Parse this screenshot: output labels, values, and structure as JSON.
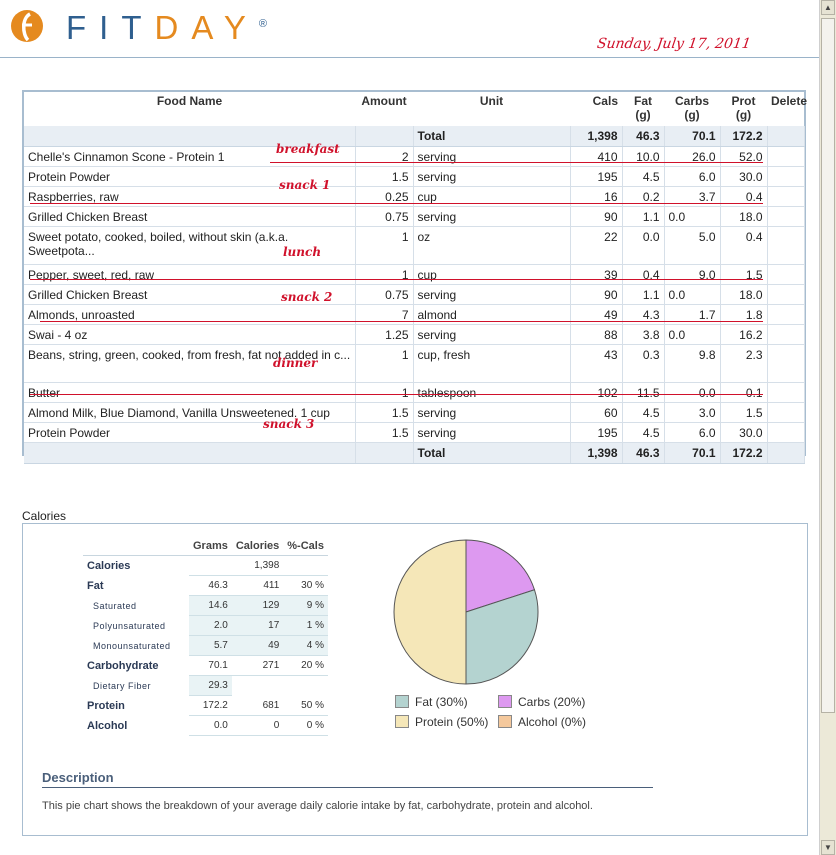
{
  "brand": {
    "name_a": "FIT",
    "name_b": "DAY",
    "mark": "®"
  },
  "date_note": "Sunday, July 17, 2011",
  "food_table": {
    "headers": {
      "food": "Food Name",
      "amount": "Amount",
      "unit": "Unit",
      "cals": "Cals",
      "fat": "Fat (g)",
      "carbs": "Carbs (g)",
      "prot": "Prot (g)",
      "delete": "Delete"
    },
    "total_label": "Total",
    "totals": {
      "cals": "1,398",
      "fat": "46.3",
      "carbs": "70.1",
      "prot": "172.2"
    },
    "rows": [
      {
        "name": "Chelle's Cinnamon Scone - Protein 1",
        "amount": "2",
        "unit": "serving",
        "cals": "410",
        "fat": "10.0",
        "carbs": "26.0",
        "prot": "52.0"
      },
      {
        "name": "Protein Powder",
        "amount": "1.5",
        "unit": "serving",
        "cals": "195",
        "fat": "4.5",
        "carbs": "6.0",
        "prot": "30.0"
      },
      {
        "name": "Raspberries, raw",
        "amount": "0.25",
        "unit": "cup",
        "cals": "16",
        "fat": "0.2",
        "carbs": "3.7",
        "prot": "0.4"
      },
      {
        "name": "Grilled Chicken Breast",
        "amount": "0.75",
        "unit": "serving",
        "cals": "90",
        "fat": "1.1",
        "carbs": "0.0",
        "prot": "18.0"
      },
      {
        "name": "Sweet potato, cooked, boiled, without skin (a.k.a. Sweetpota...",
        "amount": "1",
        "unit": "oz",
        "cals": "22",
        "fat": "0.0",
        "carbs": "5.0",
        "prot": "0.4"
      },
      {
        "name": "Pepper, sweet, red, raw",
        "amount": "1",
        "unit": "cup",
        "cals": "39",
        "fat": "0.4",
        "carbs": "9.0",
        "prot": "1.5"
      },
      {
        "name": "Grilled Chicken Breast",
        "amount": "0.75",
        "unit": "serving",
        "cals": "90",
        "fat": "1.1",
        "carbs": "0.0",
        "prot": "18.0"
      },
      {
        "name": "Almonds, unroasted",
        "amount": "7",
        "unit": "almond",
        "cals": "49",
        "fat": "4.3",
        "carbs": "1.7",
        "prot": "1.8"
      },
      {
        "name": "Swai - 4 oz",
        "amount": "1.25",
        "unit": "serving",
        "cals": "88",
        "fat": "3.8",
        "carbs": "0.0",
        "prot": "16.2"
      },
      {
        "name": "Beans, string, green, cooked, from fresh, fat not added in c...",
        "amount": "1",
        "unit": "cup, fresh",
        "cals": "43",
        "fat": "0.3",
        "carbs": "9.8",
        "prot": "2.3"
      },
      {
        "name": "Butter",
        "amount": "1",
        "unit": "tablespoon",
        "cals": "102",
        "fat": "11.5",
        "carbs": "0.0",
        "prot": "0.1"
      },
      {
        "name": "Almond Milk, Blue Diamond, Vanilla Unsweetened. 1 cup",
        "amount": "1.5",
        "unit": "serving",
        "cals": "60",
        "fat": "4.5",
        "carbs": "3.0",
        "prot": "1.5"
      },
      {
        "name": "Protein Powder",
        "amount": "1.5",
        "unit": "serving",
        "cals": "195",
        "fat": "4.5",
        "carbs": "6.0",
        "prot": "30.0"
      }
    ]
  },
  "annotations": {
    "breakfast": "breakfast",
    "snack1": "snack 1",
    "lunch": "lunch",
    "snack2": "snack 2",
    "dinner": "dinner",
    "snack3": "snack 3"
  },
  "calories": {
    "title": "Calories",
    "headers": {
      "grams": "Grams",
      "calories": "Calories",
      "pct": "%-Cals"
    },
    "rows": [
      {
        "label": "Calories",
        "grams": "",
        "calories": "1,398",
        "pct": ""
      },
      {
        "label": "Fat",
        "grams": "46.3",
        "calories": "411",
        "pct": "30 %"
      },
      {
        "label": "Saturated",
        "grams": "14.6",
        "calories": "129",
        "pct": "9 %"
      },
      {
        "label": "Polyunsaturated",
        "grams": "2.0",
        "calories": "17",
        "pct": "1 %"
      },
      {
        "label": "Monounsaturated",
        "grams": "5.7",
        "calories": "49",
        "pct": "4 %"
      },
      {
        "label": "Carbohydrate",
        "grams": "70.1",
        "calories": "271",
        "pct": "20 %"
      },
      {
        "label": "Dietary Fiber",
        "grams": "29.3",
        "calories": "",
        "pct": ""
      },
      {
        "label": "Protein",
        "grams": "172.2",
        "calories": "681",
        "pct": "50 %"
      },
      {
        "label": "Alcohol",
        "grams": "0.0",
        "calories": "0",
        "pct": "0 %"
      }
    ],
    "legend": {
      "fat": "Fat (30%)",
      "carbs": "Carbs (20%)",
      "protein": "Protein (50%)",
      "alcohol": "Alcohol (0%)"
    },
    "colors": {
      "fat": "#b4d3d0",
      "carbs": "#dd99f0",
      "protein": "#f5e7b8",
      "alcohol": "#f4c89c"
    },
    "description_title": "Description",
    "description": "This pie chart shows the breakdown of your average daily calorie intake by fat, carbohydrate, protein and alcohol."
  },
  "chart_data": {
    "type": "pie",
    "categories": [
      "Fat",
      "Carbs",
      "Protein",
      "Alcohol"
    ],
    "values": [
      30,
      20,
      50,
      0
    ]
  }
}
